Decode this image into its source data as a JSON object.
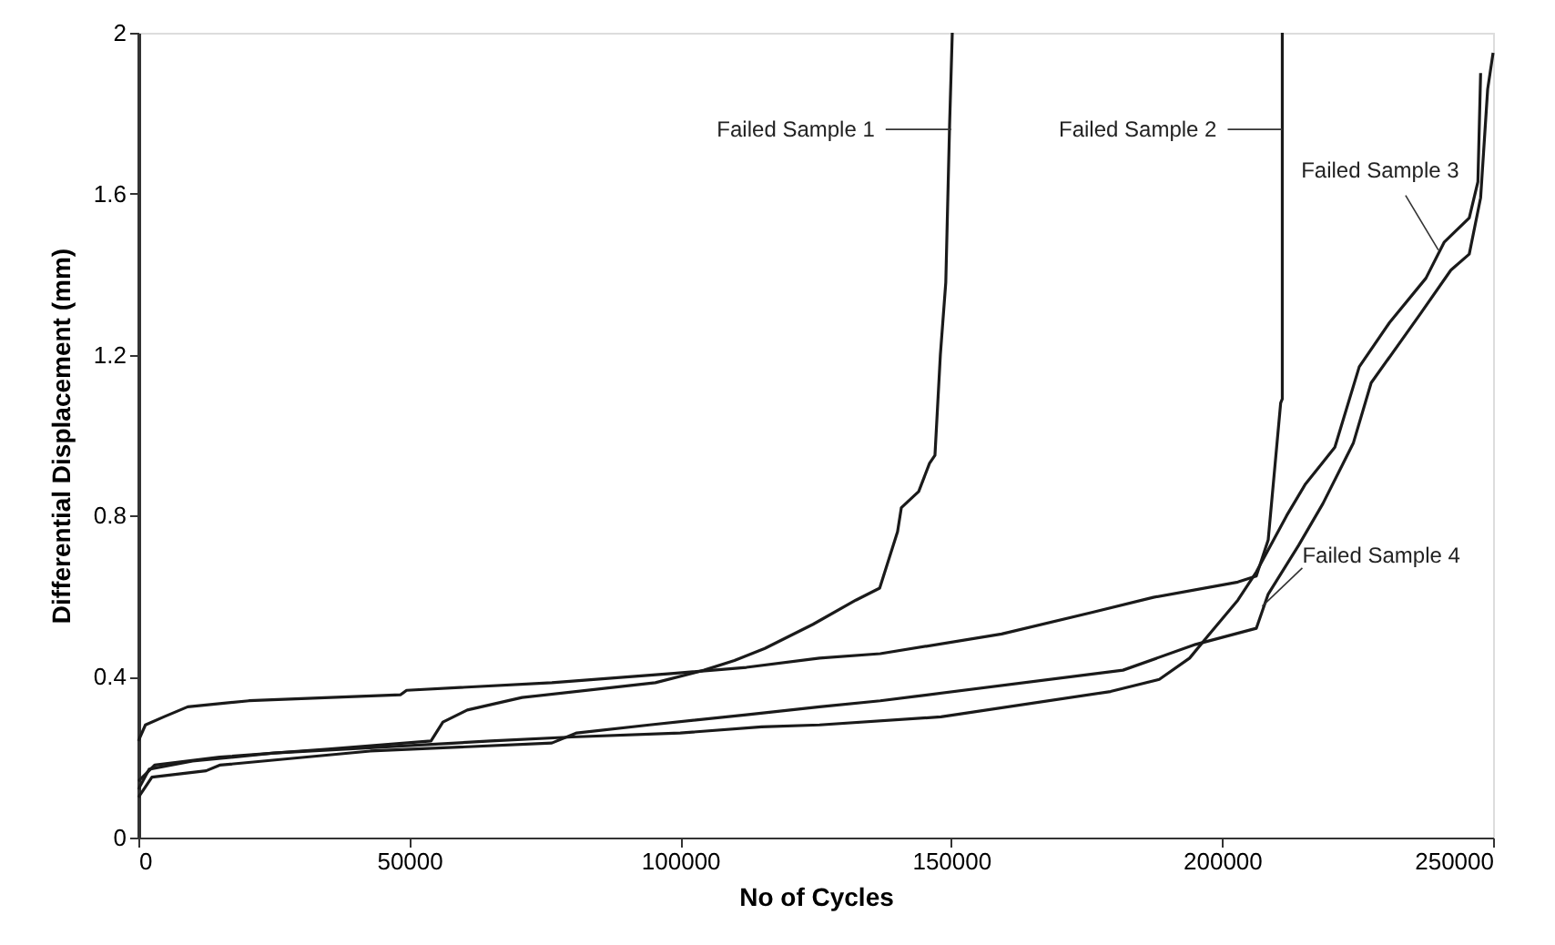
{
  "chart_data": {
    "type": "line",
    "xlabel": "No of Cycles",
    "ylabel": "Differential Displacement (mm)",
    "xlim": [
      0,
      250000
    ],
    "xticks": [
      0,
      50000,
      100000,
      150000,
      200000,
      250000
    ],
    "ylim": [
      0,
      2
    ],
    "yticks": [
      0,
      0.4,
      0.8,
      1.2,
      1.6,
      2
    ],
    "grid": false,
    "marker": "none",
    "line_style": "solid",
    "series": [
      {
        "color": "#1a1a1a",
        "x": [
          0,
          3000,
          15000,
          35000,
          54000,
          56200,
          60700,
          70800,
          95400,
          104400,
          110000,
          115600,
          124500,
          132400,
          136800,
          140100,
          140800,
          144000,
          146000,
          147000,
          148000,
          149000,
          149700,
          150200
        ],
        "values": [
          0.14,
          0.18,
          0.2,
          0.22,
          0.24,
          0.287,
          0.317,
          0.348,
          0.385,
          0.416,
          0.44,
          0.47,
          0.53,
          0.59,
          0.62,
          0.76,
          0.82,
          0.86,
          0.93,
          0.95,
          1.2,
          1.38,
          1.77,
          2.0
        ]
      },
      {
        "color": "#1a1a1a",
        "x": [
          0,
          1300,
          4700,
          9100,
          20400,
          48400,
          49500,
          76300,
          98800,
          112200,
          125700,
          136900,
          159300,
          176100,
          187300,
          202900,
          206300,
          208500,
          210800,
          211100,
          211100
        ],
        "values": [
          0.24,
          0.28,
          0.3,
          0.325,
          0.34,
          0.355,
          0.366,
          0.385,
          0.408,
          0.423,
          0.446,
          0.457,
          0.506,
          0.56,
          0.597,
          0.635,
          0.65,
          0.74,
          1.08,
          1.09,
          2.0
        ]
      },
      {
        "color": "#1a1a1a",
        "x": [
          0,
          2000,
          10000,
          25000,
          45000,
          65000,
          80000,
          100000,
          115000,
          125700,
          148100,
          179400,
          188400,
          194000,
          197300,
          202900,
          206300,
          211900,
          215300,
          220800,
          225300,
          230900,
          237600,
          241000,
          245600,
          247200,
          247700
        ],
        "values": [
          0.12,
          0.17,
          0.19,
          0.21,
          0.225,
          0.24,
          0.25,
          0.26,
          0.275,
          0.28,
          0.3,
          0.363,
          0.393,
          0.446,
          0.5,
          0.59,
          0.66,
          0.8,
          0.877,
          0.97,
          1.17,
          1.28,
          1.39,
          1.48,
          1.54,
          1.63,
          1.9
        ]
      },
      {
        "color": "#1a1a1a",
        "x": [
          0,
          2500,
          12500,
          15000,
          42800,
          76300,
          80900,
          94300,
          112200,
          125700,
          136900,
          181700,
          195100,
          206300,
          208500,
          214100,
          218600,
          224200,
          227500,
          236500,
          242200,
          245600,
          247700,
          249000,
          250000
        ],
        "values": [
          0.1,
          0.15,
          0.166,
          0.18,
          0.215,
          0.235,
          0.26,
          0.28,
          0.305,
          0.325,
          0.34,
          0.416,
          0.48,
          0.52,
          0.605,
          0.726,
          0.83,
          0.98,
          1.13,
          1.3,
          1.41,
          1.45,
          1.59,
          1.86,
          1.95
        ]
      }
    ],
    "annotations": [
      {
        "text": "Failed Sample 1",
        "x": 150000,
        "y": 1.76
      },
      {
        "text": "Failed Sample 2",
        "x": 211100,
        "y": 1.76
      },
      {
        "text": "Failed Sample 3",
        "x": 239900,
        "y": 1.46
      },
      {
        "text": "Failed Sample 4",
        "x": 207400,
        "y": 0.575
      }
    ]
  }
}
